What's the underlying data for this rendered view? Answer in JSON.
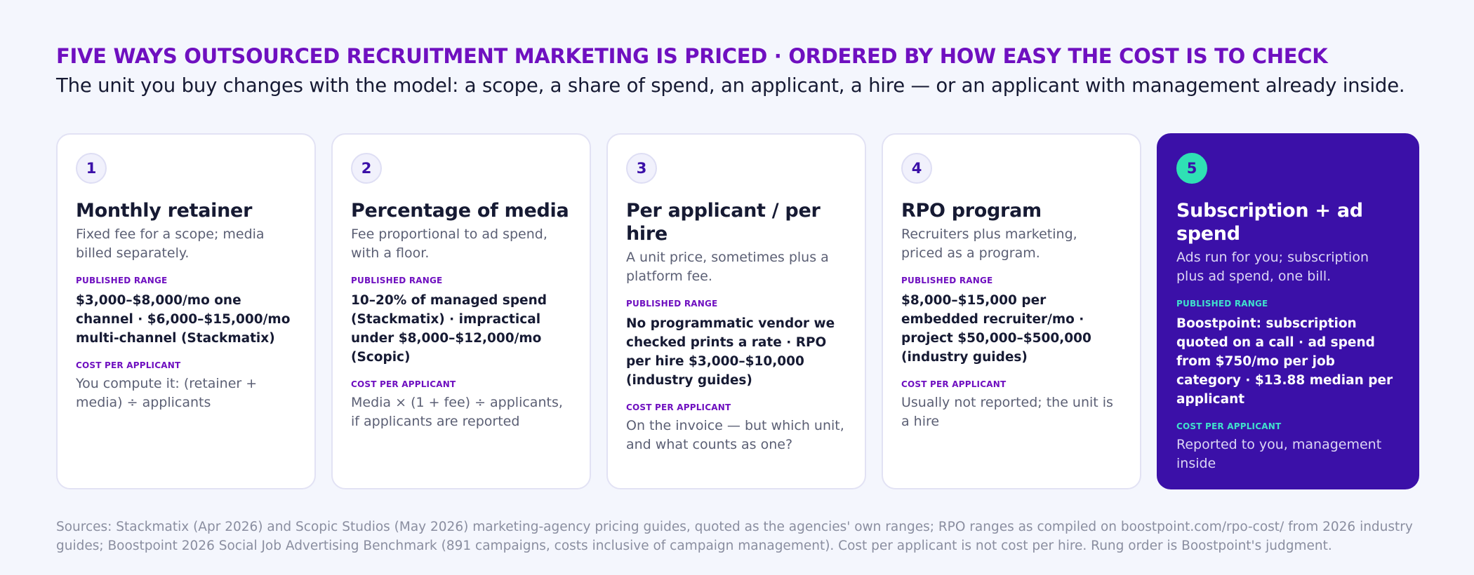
{
  "header": {
    "title": "FIVE WAYS OUTSOURCED RECRUITMENT MARKETING IS PRICED · ORDERED BY HOW EASY THE COST IS TO CHECK",
    "subtitle": "The unit you buy changes with the model: a scope, a share of spend, an applicant, a hire — or an applicant with management already inside."
  },
  "cards": [
    {
      "number": "1",
      "title": "Monthly retainer",
      "description": "Fixed fee for a scope; media billed separately.",
      "range_label": "PUBLISHED RANGE",
      "range": "$3,000–$8,000/mo one channel · $6,000–$15,000/mo multi-channel (Stackmatix)",
      "cpa_label": "COST PER APPLICANT",
      "cpa": "You compute it: (retainer + media) ÷ applicants"
    },
    {
      "number": "2",
      "title": "Percentage of media",
      "description": "Fee proportional to ad spend, with a floor.",
      "range_label": "PUBLISHED RANGE",
      "range": "10–20% of managed spend (Stackmatix) · impractical under $8,000–$12,000/mo (Scopic)",
      "cpa_label": "COST PER APPLICANT",
      "cpa": "Media × (1 + fee) ÷ applicants, if applicants are reported"
    },
    {
      "number": "3",
      "title": "Per applicant / per hire",
      "description": "A unit price, sometimes plus a platform fee.",
      "range_label": "PUBLISHED RANGE",
      "range": "No programmatic vendor we checked prints a rate · RPO per hire $3,000–$10,000 (industry guides)",
      "cpa_label": "COST PER APPLICANT",
      "cpa": "On the invoice — but which unit, and what counts as one?"
    },
    {
      "number": "4",
      "title": "RPO program",
      "description": "Recruiters plus marketing, priced as a program.",
      "range_label": "PUBLISHED RANGE",
      "range": "$8,000–$15,000 per embedded recruiter/mo · project $50,000–$500,000 (industry guides)",
      "cpa_label": "COST PER APPLICANT",
      "cpa": "Usually not reported; the unit is a hire"
    },
    {
      "number": "5",
      "title": "Subscription + ad spend",
      "description": "Ads run for you; subscription plus ad spend, one bill.",
      "range_label": "PUBLISHED RANGE",
      "range": "Boostpoint: subscription quoted on a call · ad spend from $750/mo per job category · $13.88 median per applicant",
      "cpa_label": "COST PER APPLICANT",
      "cpa": "Reported to you, management inside"
    }
  ],
  "sources": "Sources: Stackmatix (Apr 2026) and Scopic Studios (May 2026) marketing-agency pricing guides, quoted as the agencies' own ranges; RPO ranges as compiled on boostpoint.com/rpo-cost/ from 2026 industry guides; Boostpoint 2026 Social Job Advertising Benchmark (891 campaigns, costs inclusive of campaign management). Cost per applicant is not cost per hire. Rung order is Boostpoint's judgment.",
  "colors": {
    "title_purple": "#6f10c0",
    "highlight_bg": "#3b10a8",
    "highlight_badge": "#2fe0b4",
    "highlight_label": "#40e0cc",
    "page_bg": "#f4f6fd"
  }
}
